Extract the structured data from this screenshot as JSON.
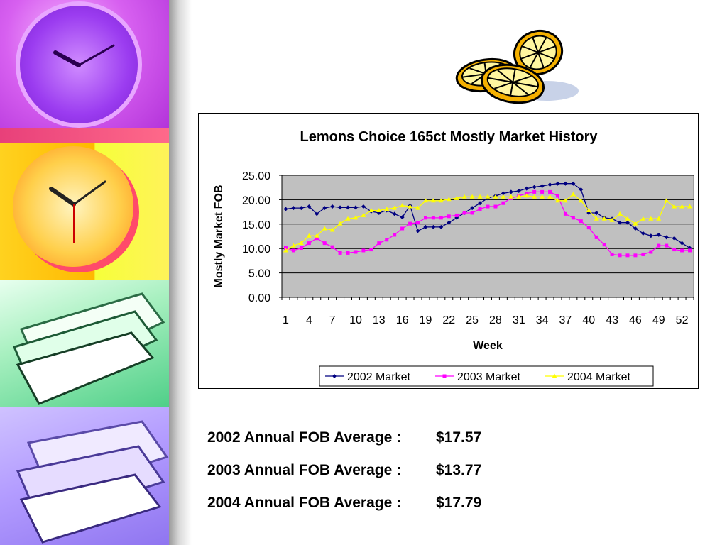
{
  "colors": {
    "series_2002": "#000080",
    "series_2003": "#ff00ff",
    "series_2004": "#ffff00",
    "plot_background": "#c0c0c0"
  },
  "chart_data": {
    "type": "line",
    "title": "Lemons Choice 165ct  Mostly Market History",
    "xlabel": "Week",
    "ylabel": "Mostly Market FOB",
    "ylim": [
      0,
      25
    ],
    "y_ticks": [
      "0.00",
      "5.00",
      "10.00",
      "15.00",
      "20.00",
      "25.00"
    ],
    "x_tick_labels": [
      "1",
      "4",
      "7",
      "10",
      "13",
      "16",
      "19",
      "22",
      "25",
      "28",
      "31",
      "34",
      "37",
      "40",
      "43",
      "46",
      "49",
      "52"
    ],
    "x": [
      1,
      2,
      3,
      4,
      5,
      6,
      7,
      8,
      9,
      10,
      11,
      12,
      13,
      14,
      15,
      16,
      17,
      18,
      19,
      20,
      21,
      22,
      23,
      24,
      25,
      26,
      27,
      28,
      29,
      30,
      31,
      32,
      33,
      34,
      35,
      36,
      37,
      38,
      39,
      40,
      41,
      42,
      43,
      44,
      45,
      46,
      47,
      48,
      49,
      50,
      51,
      52,
      53
    ],
    "grid": "horizontal",
    "legend_position": "bottom",
    "series": [
      {
        "name": "2002 Market",
        "marker": "diamond",
        "values": [
          18.1,
          18.3,
          18.3,
          18.6,
          17.1,
          18.3,
          18.6,
          18.4,
          18.4,
          18.4,
          18.6,
          17.6,
          17.3,
          17.8,
          17.1,
          16.4,
          18.8,
          13.6,
          14.4,
          14.4,
          14.4,
          15.3,
          16.3,
          17.3,
          18.3,
          19.3,
          20.3,
          20.8,
          21.3,
          21.6,
          21.8,
          22.3,
          22.6,
          22.8,
          23.1,
          23.3,
          23.3,
          23.3,
          22.1,
          17.3,
          17.3,
          16.3,
          16.1,
          15.3,
          15.3,
          14.1,
          13.1,
          12.6,
          12.8,
          12.3,
          12.1,
          11.1,
          10.1
        ]
      },
      {
        "name": "2003 Market",
        "marker": "square",
        "values": [
          10.1,
          9.6,
          10.1,
          11.1,
          12.1,
          11.1,
          10.3,
          9.1,
          9.1,
          9.3,
          9.6,
          9.8,
          11.1,
          11.8,
          12.8,
          14.1,
          15.1,
          15.3,
          16.3,
          16.3,
          16.3,
          16.6,
          16.8,
          17.3,
          17.3,
          18.1,
          18.6,
          18.6,
          19.3,
          20.3,
          20.8,
          21.3,
          21.6,
          21.6,
          21.6,
          20.8,
          17.1,
          16.3,
          15.6,
          14.3,
          12.3,
          10.8,
          8.8,
          8.6,
          8.6,
          8.6,
          8.8,
          9.3,
          10.6,
          10.6,
          9.8,
          9.6,
          9.6
        ]
      },
      {
        "name": "2004 Market",
        "marker": "triangle",
        "values": [
          9.6,
          10.6,
          11.1,
          12.6,
          12.6,
          14.1,
          13.8,
          15.1,
          16.1,
          16.3,
          16.8,
          17.8,
          17.8,
          18.1,
          18.3,
          18.8,
          18.6,
          18.3,
          19.8,
          19.8,
          19.8,
          20.1,
          20.3,
          20.6,
          20.6,
          20.6,
          20.6,
          20.6,
          20.6,
          20.6,
          20.6,
          20.8,
          20.6,
          20.6,
          20.6,
          19.8,
          19.8,
          21.1,
          19.8,
          17.8,
          16.1,
          16.1,
          15.8,
          17.1,
          16.1,
          15.1,
          16.1,
          16.1,
          16.1,
          19.8,
          18.6,
          18.6,
          18.6
        ]
      }
    ]
  },
  "averages": [
    {
      "label": "2002 Annual FOB Average :",
      "value": "$17.57"
    },
    {
      "label": "2003 Annual FOB Average :",
      "value": "$13.77"
    },
    {
      "label": "2004 Annual FOB Average :",
      "value": "$17.79"
    }
  ],
  "decor": {
    "side_images": [
      "clock-purple",
      "clock-yellow",
      "papers-green",
      "papers-purple"
    ],
    "clipart": "lemon-slices"
  }
}
